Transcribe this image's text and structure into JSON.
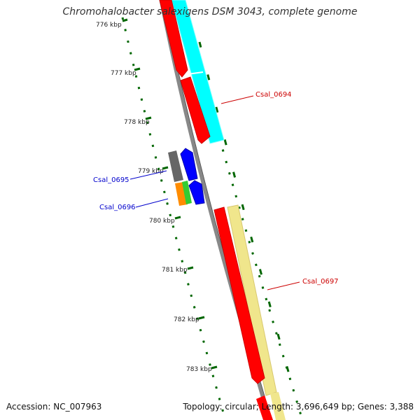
{
  "title": "Chromohalobacter salexigens DSM 3043, complete genome",
  "accession_text": "Accession: NC_007963",
  "topology_text": "Topology: circular; Length: 3,696,649 bp; Genes: 3,388",
  "ticks": [
    {
      "label": "776 kbp"
    },
    {
      "label": "777 kbp"
    },
    {
      "label": "778 kbp"
    },
    {
      "label": "779 kbp"
    },
    {
      "label": "780 kbp"
    },
    {
      "label": "781 kbp"
    },
    {
      "label": "782 kbp"
    },
    {
      "label": "783 kbp"
    }
  ],
  "gene_labels": [
    {
      "name": "Csal_0694",
      "color": "#cc0000"
    },
    {
      "name": "Csal_0695",
      "color": "#0000cc"
    },
    {
      "name": "Csal_0696",
      "color": "#0000cc"
    },
    {
      "name": "Csal_0697",
      "color": "#cc0000"
    }
  ],
  "colors": {
    "forward_cds": "#ff0000",
    "reverse_cds": "#0000ff",
    "cog_cyan": "#00ffff",
    "cog_khaki": "#f0e68c",
    "cog_gray": "#666666",
    "cog_orange": "#ff8c00",
    "cog_green": "#33cc33",
    "backbone": "#888888",
    "gc_track": "#006600"
  }
}
